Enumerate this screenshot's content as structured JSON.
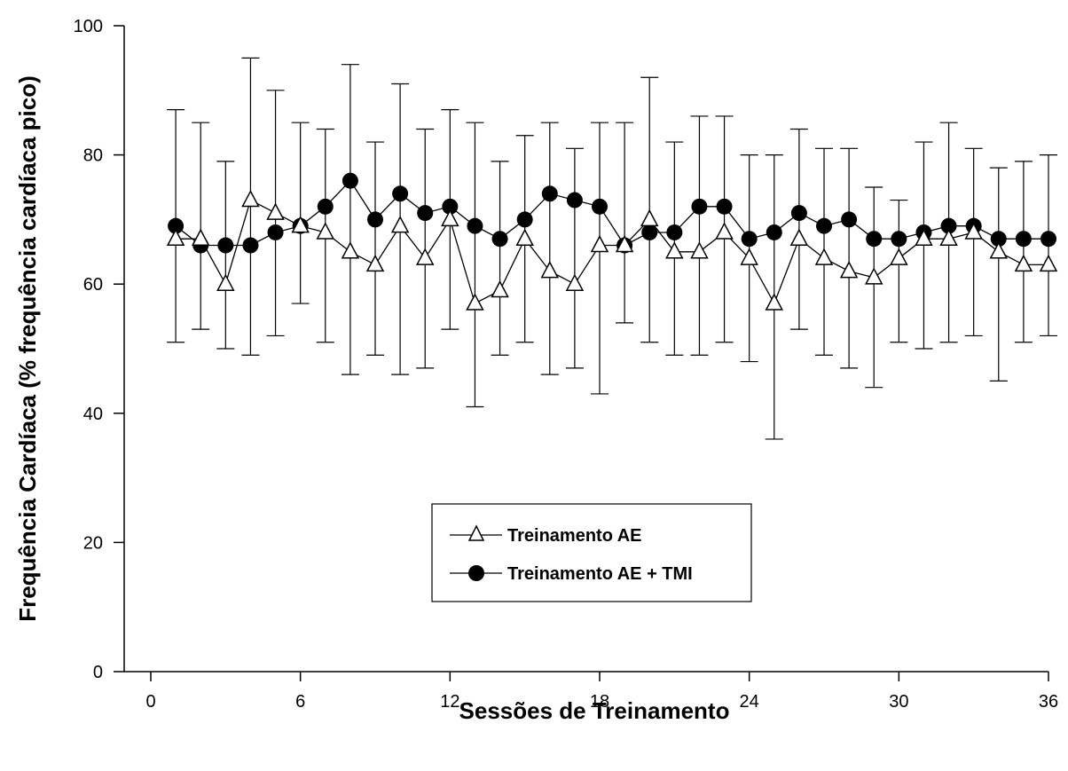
{
  "chart_data": {
    "type": "line",
    "title": "",
    "xlabel": "Sessões de Treinamento",
    "ylabel": "Frequência Cardíaca (% frequência cardíaca pico)",
    "xlim": [
      0,
      36
    ],
    "ylim": [
      0,
      100
    ],
    "x_ticks": [
      "0",
      "6",
      "12",
      "18",
      "24",
      "30",
      "36"
    ],
    "y_ticks": [
      "0",
      "20",
      "40",
      "60",
      "80",
      "100"
    ],
    "grid": false,
    "legend_position": "bottom-left",
    "x": [
      1,
      2,
      3,
      4,
      5,
      6,
      7,
      8,
      9,
      10,
      11,
      12,
      13,
      14,
      15,
      16,
      17,
      18,
      19,
      20,
      21,
      22,
      23,
      24,
      25,
      26,
      27,
      28,
      29,
      30,
      31,
      32,
      33,
      34,
      35,
      36
    ],
    "series": [
      {
        "name": "Treinamento AE",
        "marker": "open-triangle",
        "values": [
          67,
          67,
          60,
          73,
          71,
          69,
          68,
          65,
          63,
          69,
          64,
          70,
          57,
          59,
          67,
          62,
          60,
          66,
          66,
          70,
          65,
          65,
          68,
          64,
          57,
          67,
          64,
          62,
          61,
          64,
          67,
          67,
          68,
          65,
          63,
          63
        ],
        "error_upper": [
          87,
          85,
          79,
          95,
          90,
          85,
          84,
          94,
          82,
          91,
          84,
          87,
          85,
          79,
          83,
          85,
          81,
          85,
          85,
          92,
          82,
          86,
          86,
          80,
          80,
          84,
          81,
          81,
          75,
          73,
          82,
          85,
          81,
          78,
          79,
          80
        ],
        "error_lower": [
          51,
          53,
          50,
          49,
          52,
          57,
          51,
          46,
          49,
          46,
          47,
          53,
          41,
          49,
          51,
          46,
          47,
          43,
          54,
          51,
          49,
          49,
          51,
          48,
          36,
          53,
          49,
          47,
          44,
          51,
          50,
          51,
          52,
          45,
          51,
          52
        ]
      },
      {
        "name": "Treinamento AE + TMI",
        "marker": "filled-circle",
        "values": [
          69,
          66,
          66,
          66,
          68,
          69,
          72,
          76,
          70,
          74,
          71,
          72,
          69,
          67,
          70,
          74,
          73,
          72,
          66,
          68,
          68,
          72,
          72,
          67,
          68,
          71,
          69,
          70,
          67,
          67,
          68,
          69,
          69,
          67,
          67,
          67
        ]
      }
    ]
  }
}
